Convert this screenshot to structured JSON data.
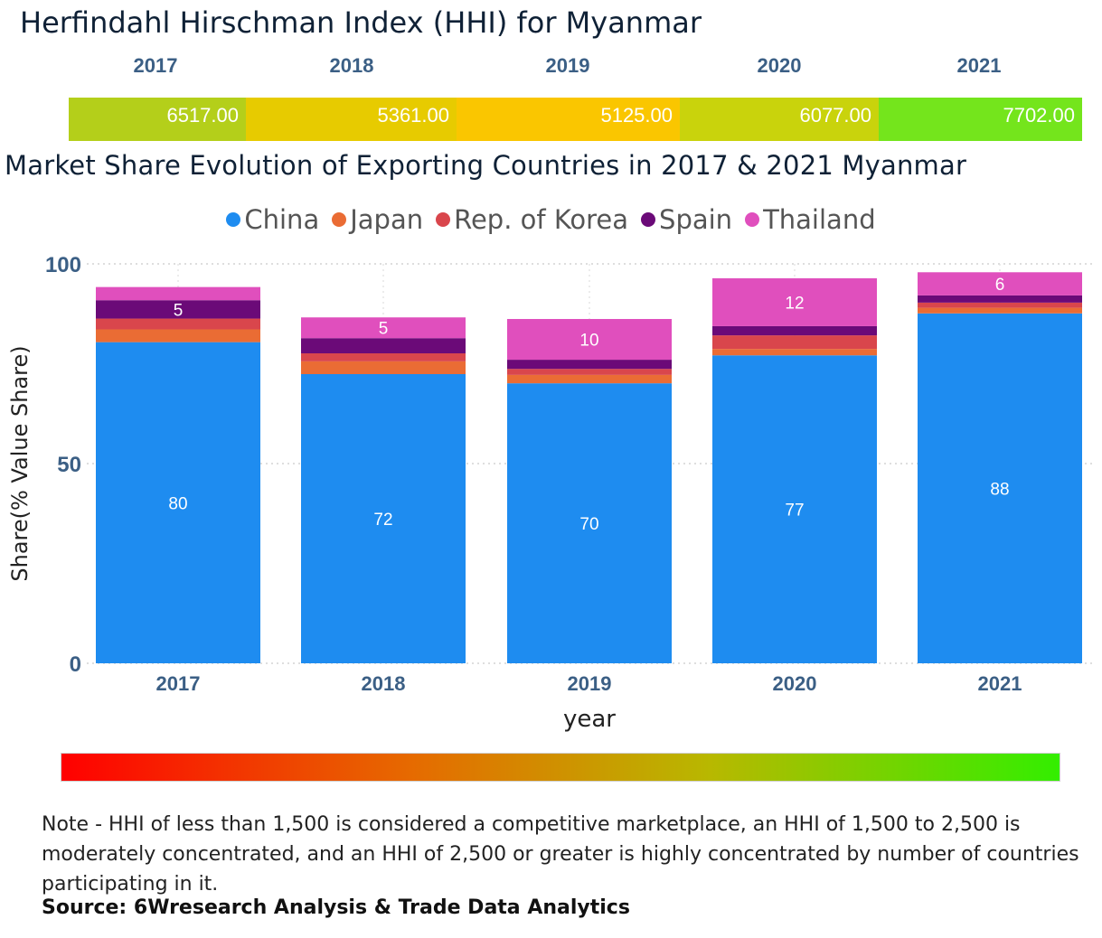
{
  "hhi": {
    "title": "Herfindahl Hirschman Index (HHI) for Myanmar",
    "cells": [
      {
        "year": "2017",
        "value": "6517.00",
        "color": "#b4cf1a"
      },
      {
        "year": "2018",
        "value": "5361.00",
        "color": "#e7cb00"
      },
      {
        "year": "2019",
        "value": "5125.00",
        "color": "#fac600"
      },
      {
        "year": "2020",
        "value": "6077.00",
        "color": "#c9d30c"
      },
      {
        "year": "2021",
        "value": "7702.00",
        "color": "#74e51c"
      }
    ]
  },
  "chart_data": {
    "type": "bar",
    "stacked": true,
    "title": "Market Share Evolution of Exporting Countries in 2017 & 2021 Myanmar",
    "xlabel": "year",
    "ylabel": "Share(% Value Share)",
    "ylim": [
      0,
      100
    ],
    "yticks": [
      "0",
      "50",
      "100"
    ],
    "categories": [
      "2017",
      "2018",
      "2019",
      "2020",
      "2021"
    ],
    "series": [
      {
        "name": "China",
        "color": "#1e8cf0",
        "values": [
          80.4,
          72.4,
          70.1,
          77.1,
          87.6
        ],
        "labels": [
          "80",
          "72",
          "70",
          "77",
          "88"
        ]
      },
      {
        "name": "Japan",
        "color": "#ea6c34",
        "values": [
          3.2,
          3.2,
          2.1,
          1.6,
          1.4
        ],
        "labels": [
          "",
          "",
          "",
          "",
          ""
        ]
      },
      {
        "name": "Rep. of Korea",
        "color": "#d9464c",
        "values": [
          2.7,
          2.0,
          1.5,
          3.4,
          1.3
        ],
        "labels": [
          "",
          "",
          "",
          "",
          ""
        ]
      },
      {
        "name": "Spain",
        "color": "#6b0a78",
        "values": [
          4.6,
          3.8,
          2.3,
          2.3,
          1.8
        ],
        "labels": [
          "5",
          "",
          "",
          "",
          ""
        ]
      },
      {
        "name": "Thailand",
        "color": "#e04fbd",
        "values": [
          3.3,
          5.2,
          10.2,
          12.0,
          5.8
        ],
        "labels": [
          "",
          "5",
          "10",
          "12",
          "6"
        ]
      }
    ],
    "legend_position": "top-center",
    "grid": true
  },
  "color_scale": {
    "from": "#ff0000",
    "to": "#33ee00"
  },
  "note": {
    "text": "Note - HHI of less than 1,500 is considered a competitive marketplace, an HHI of 1,500 to 2,500 is moderately concentrated, and an HHI of 2,500 or greater is highly concentrated by number of countries participating in it.",
    "source": "Source: 6Wresearch Analysis & Trade Data Analytics"
  }
}
